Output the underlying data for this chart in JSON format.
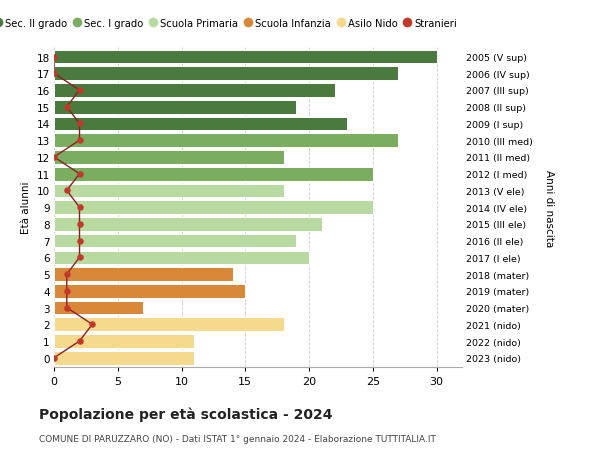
{
  "ages": [
    18,
    17,
    16,
    15,
    14,
    13,
    12,
    11,
    10,
    9,
    8,
    7,
    6,
    5,
    4,
    3,
    2,
    1,
    0
  ],
  "values": [
    30,
    27,
    22,
    19,
    23,
    27,
    18,
    25,
    18,
    25,
    21,
    19,
    20,
    14,
    15,
    7,
    18,
    11,
    11
  ],
  "stranieri": [
    0,
    0,
    2,
    1,
    2,
    2,
    0,
    2,
    1,
    2,
    2,
    2,
    2,
    1,
    1,
    1,
    3,
    2,
    0
  ],
  "right_labels": [
    "2005 (V sup)",
    "2006 (IV sup)",
    "2007 (III sup)",
    "2008 (II sup)",
    "2009 (I sup)",
    "2010 (III med)",
    "2011 (II med)",
    "2012 (I med)",
    "2013 (V ele)",
    "2014 (IV ele)",
    "2015 (III ele)",
    "2016 (II ele)",
    "2017 (I ele)",
    "2018 (mater)",
    "2019 (mater)",
    "2020 (mater)",
    "2021 (nido)",
    "2022 (nido)",
    "2023 (nido)"
  ],
  "bar_colors": [
    "#4a7a3d",
    "#4a7a3d",
    "#4a7a3d",
    "#4a7a3d",
    "#4a7a3d",
    "#7aad5f",
    "#7aad5f",
    "#7aad5f",
    "#b8d9a0",
    "#b8d9a0",
    "#b8d9a0",
    "#b8d9a0",
    "#b8d9a0",
    "#d9883a",
    "#d9883a",
    "#d9883a",
    "#f5d98c",
    "#f5d98c",
    "#f5d98c"
  ],
  "legend_labels": [
    "Sec. II grado",
    "Sec. I grado",
    "Scuola Primaria",
    "Scuola Infanzia",
    "Asilo Nido",
    "Stranieri"
  ],
  "legend_colors": [
    "#4a7a3d",
    "#7aad5f",
    "#b8d9a0",
    "#d9883a",
    "#f5d98c",
    "#c0392b"
  ],
  "title": "Popolazione per età scolastica - 2024",
  "subtitle": "COMUNE DI PARUZZARO (NO) - Dati ISTAT 1° gennaio 2024 - Elaborazione TUTTITALIA.IT",
  "ylabel": "Età alunni",
  "right_ylabel": "Anni di nascita",
  "xlim": [
    0,
    32
  ],
  "ylim_min": -0.55,
  "ylim_max": 18.55,
  "stranieri_color": "#c0392b",
  "stranieri_line_color": "#8b2020",
  "grid_color": "#cccccc"
}
